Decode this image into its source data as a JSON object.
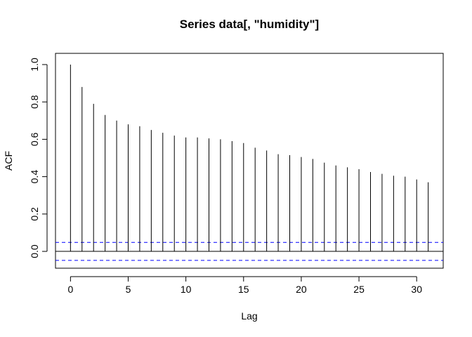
{
  "chart_data": {
    "type": "bar",
    "title": "Series  data[, \"humidity\"]",
    "xlabel": "Lag",
    "ylabel": "ACF",
    "x": [
      0,
      1,
      2,
      3,
      4,
      5,
      6,
      7,
      8,
      9,
      10,
      11,
      12,
      13,
      14,
      15,
      16,
      17,
      18,
      19,
      20,
      21,
      22,
      23,
      24,
      25,
      26,
      27,
      28,
      29,
      30,
      31
    ],
    "values": [
      1.0,
      0.88,
      0.79,
      0.73,
      0.7,
      0.68,
      0.67,
      0.65,
      0.635,
      0.62,
      0.61,
      0.61,
      0.605,
      0.6,
      0.59,
      0.58,
      0.555,
      0.54,
      0.52,
      0.515,
      0.505,
      0.495,
      0.475,
      0.46,
      0.45,
      0.44,
      0.425,
      0.415,
      0.405,
      0.4,
      0.385,
      0.37
    ],
    "conf_limit": 0.048,
    "xlim": [
      -1.3,
      32.3
    ],
    "ylim": [
      -0.09,
      1.06
    ],
    "x_ticks": [
      0,
      5,
      10,
      15,
      20,
      25,
      30
    ],
    "x_tick_labels": [
      "0",
      "5",
      "10",
      "15",
      "20",
      "25",
      "30"
    ],
    "y_ticks": [
      0.0,
      0.2,
      0.4,
      0.6,
      0.8,
      1.0
    ],
    "y_tick_labels": [
      "0.0",
      "0.2",
      "0.4",
      "0.6",
      "0.8",
      "1.0"
    ],
    "zero_line": true,
    "grid": false,
    "legend": "none",
    "colors": {
      "bars": "#000000",
      "conf_lines": "#0000ff",
      "axis": "#000000",
      "zero_line": "#000000"
    }
  }
}
